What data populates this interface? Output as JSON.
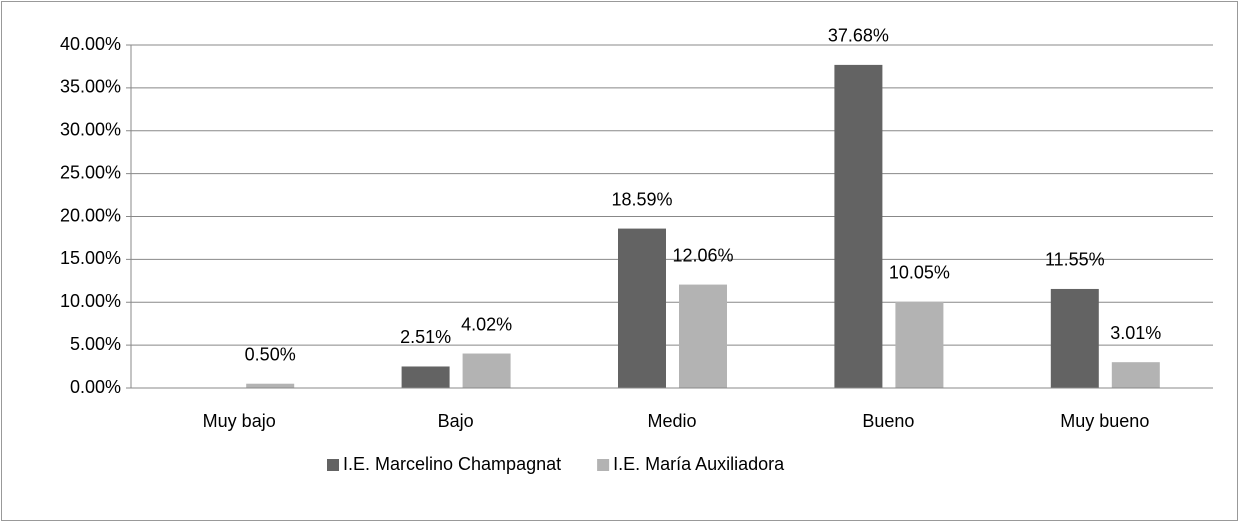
{
  "chart_data": {
    "type": "bar",
    "categories": [
      "Muy bajo",
      "Bajo",
      "Medio",
      "Bueno",
      "Muy bueno"
    ],
    "series": [
      {
        "name": "I.E. Marcelino Champagnat",
        "color": "#636363",
        "values": [
          null,
          2.51,
          18.59,
          37.68,
          11.55
        ],
        "value_labels": [
          null,
          "2.51%",
          "18.59%",
          "37.68%",
          "11.55%"
        ]
      },
      {
        "name": "I.E. María Auxiliadora",
        "color": "#b3b3b3",
        "values": [
          0.5,
          4.02,
          12.06,
          10.05,
          3.01
        ],
        "value_labels": [
          "0.50%",
          "4.02%",
          "12.06%",
          "10.05%",
          "3.01%"
        ]
      }
    ],
    "ylim": [
      0,
      40
    ],
    "yticks": [
      {
        "value": 0,
        "label": "0.00%"
      },
      {
        "value": 5,
        "label": "5.00%"
      },
      {
        "value": 10,
        "label": "10.00%"
      },
      {
        "value": 15,
        "label": "15.00%"
      },
      {
        "value": 20,
        "label": "20.00%"
      },
      {
        "value": 25,
        "label": "25.00%"
      },
      {
        "value": 30,
        "label": "30.00%"
      },
      {
        "value": 35,
        "label": "35.00%"
      },
      {
        "value": 40,
        "label": "40.00%"
      }
    ],
    "grid": true,
    "legend": "bottom"
  }
}
